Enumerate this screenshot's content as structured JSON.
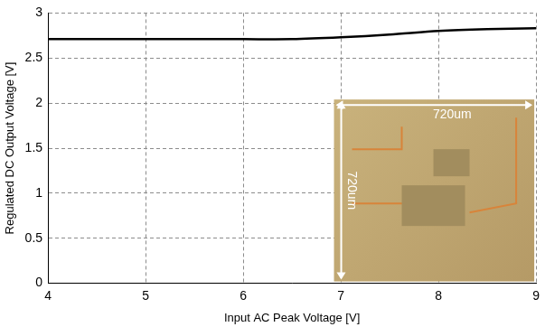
{
  "chart_data": {
    "type": "line",
    "x_label": "Input AC Peak Voltage [V]",
    "y_label": "Regulated DC Output Voltage [V]",
    "x": [
      4,
      4.5,
      5,
      5.5,
      6,
      6.5,
      7,
      7.5,
      8,
      8.5,
      9
    ],
    "series": [
      {
        "name": "Regulated DC Output Voltage",
        "color": "#000000",
        "values": [
          2.71,
          2.71,
          2.71,
          2.71,
          2.71,
          2.71,
          2.73,
          2.76,
          2.8,
          2.82,
          2.83
        ]
      }
    ],
    "xlim": [
      4,
      9
    ],
    "xticks": [
      4,
      5,
      6,
      7,
      8,
      9
    ],
    "ylim": [
      0,
      3
    ],
    "yticks": [
      0,
      0.5,
      1,
      1.5,
      2,
      2.5,
      3
    ],
    "grid": true,
    "marker": "none",
    "line_style": "solid",
    "annotations": [
      "720um",
      "720um"
    ]
  }
}
